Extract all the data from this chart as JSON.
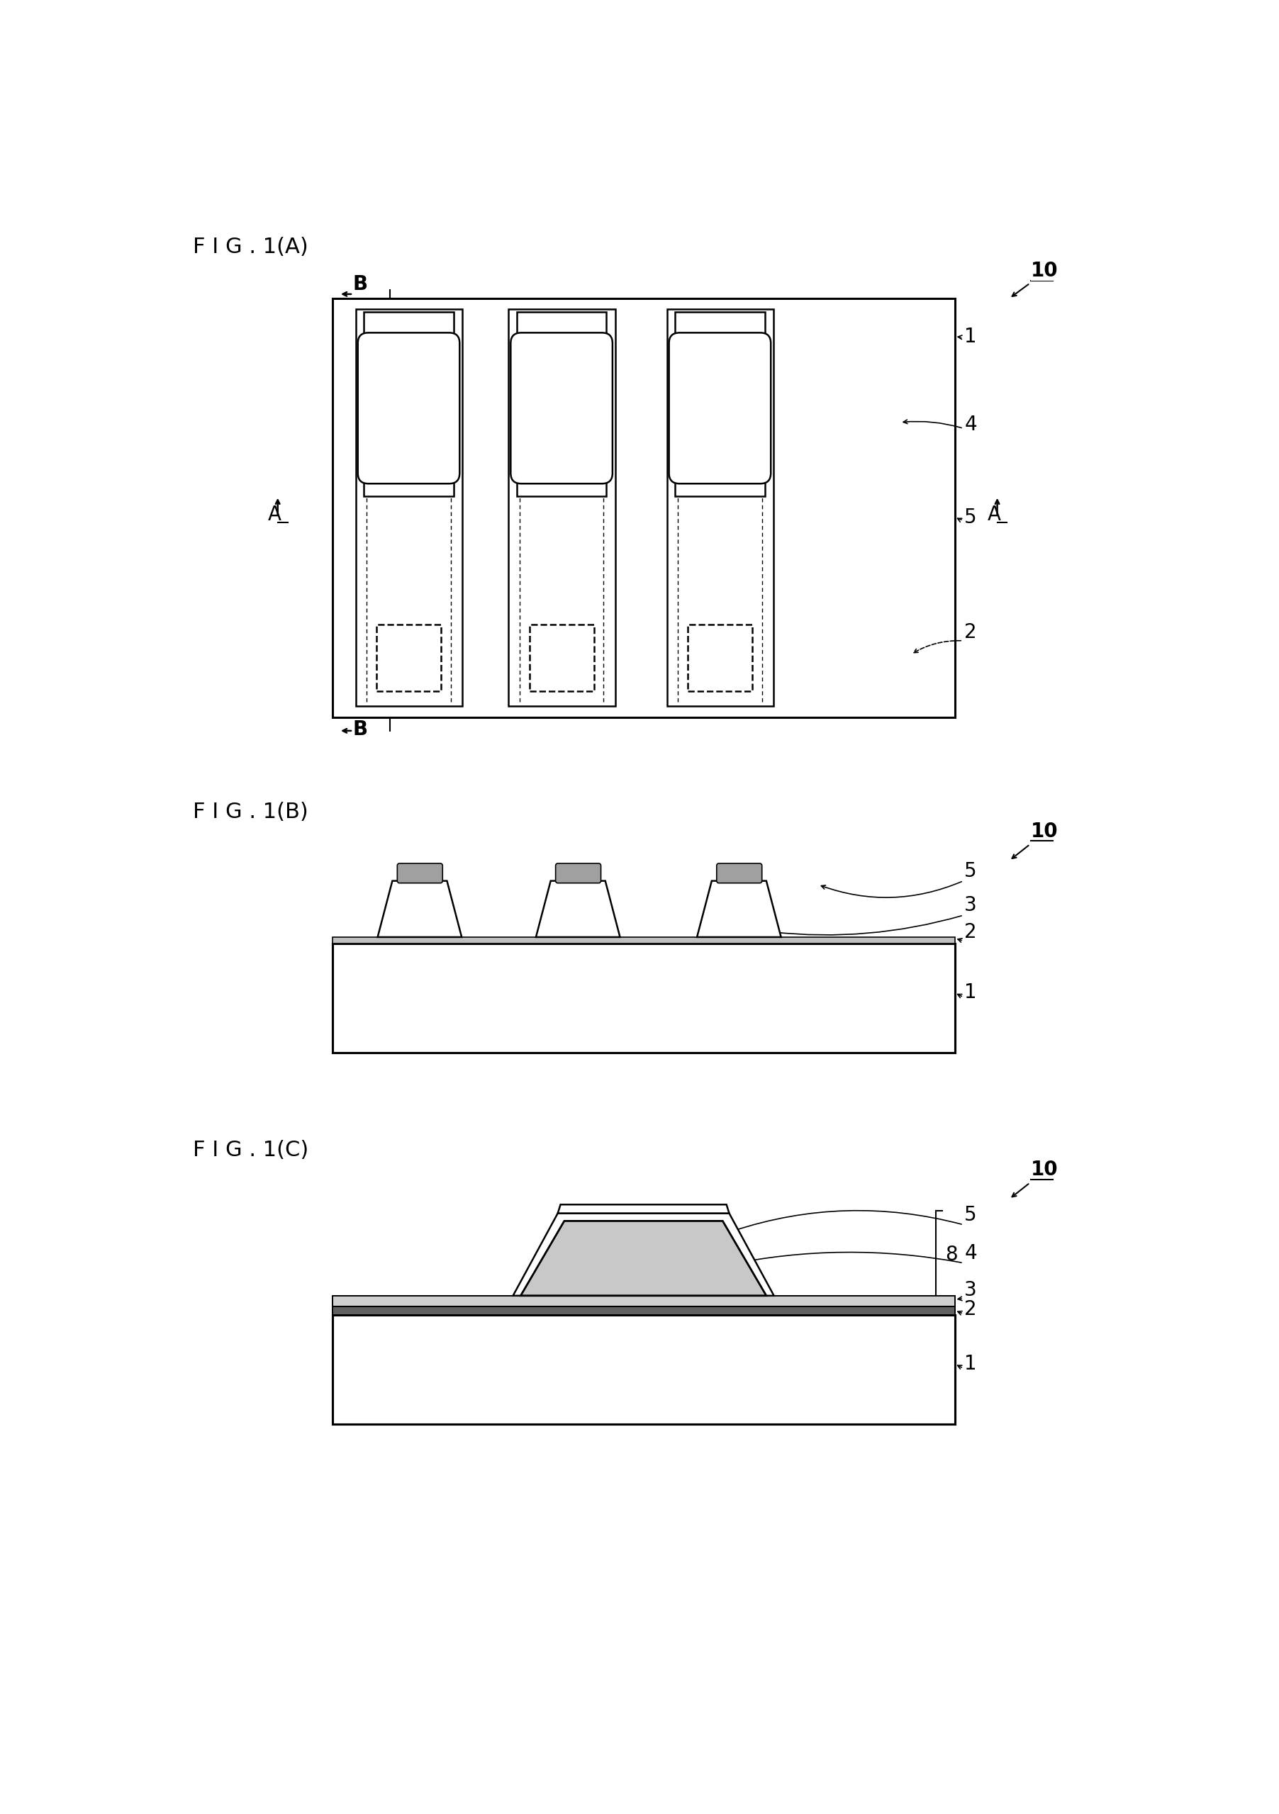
{
  "bg_color": "#ffffff",
  "fig_width": 18.04,
  "fig_height": 25.59,
  "fig1A_label": "F I G . 1(A)",
  "fig1B_label": "F I G . 1(B)",
  "fig1C_label": "F I G . 1(C)",
  "label_fontsize": 22,
  "ref_fontsize": 20
}
